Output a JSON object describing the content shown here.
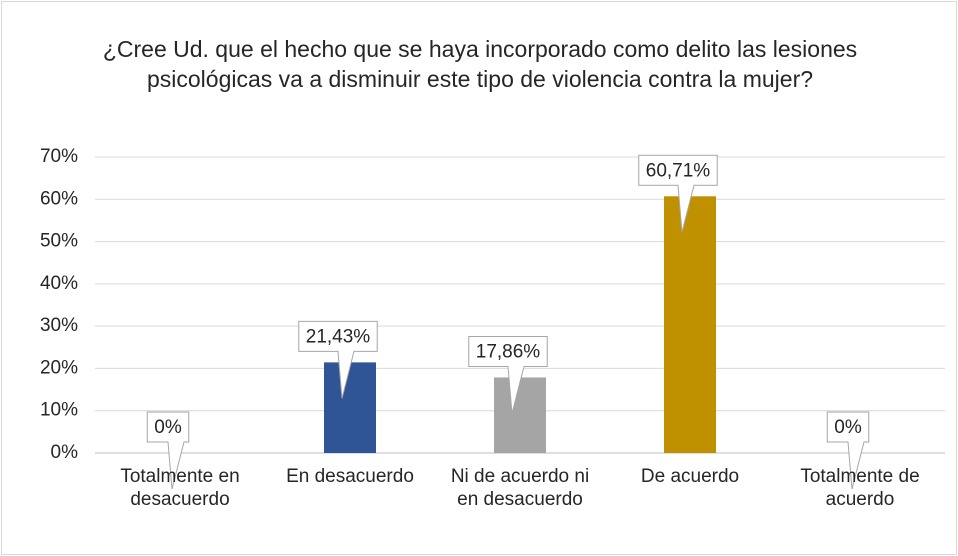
{
  "chart_data": {
    "type": "bar",
    "title": "¿Cree Ud. que el hecho que se haya incorporado como delito las lesiones psicológicas va a disminuir este tipo de violencia contra la mujer?",
    "categories": [
      "Totalmente en desacuerdo",
      "En desacuerdo",
      "Ni de acuerdo ni en desacuerdo",
      "De acuerdo",
      "Totalmente de acuerdo"
    ],
    "values": [
      0,
      21.43,
      17.86,
      60.71,
      0
    ],
    "value_labels": [
      "0%",
      "21,43%",
      "17,86%",
      "60,71%",
      "0%"
    ],
    "colors": [
      "#4472c4",
      "#2f5597",
      "#a5a5a5",
      "#bf9000",
      "#5b9bd5"
    ],
    "ylim": [
      0,
      70
    ],
    "yticks": [
      {
        "value": 0,
        "label": "0%"
      },
      {
        "value": 10,
        "label": "10%"
      },
      {
        "value": 20,
        "label": "20%"
      },
      {
        "value": 30,
        "label": "30%"
      },
      {
        "value": 40,
        "label": "40%"
      },
      {
        "value": 50,
        "label": "50%"
      },
      {
        "value": 60,
        "label": "60%"
      },
      {
        "value": 70,
        "label": "70%"
      }
    ],
    "grid": true
  }
}
